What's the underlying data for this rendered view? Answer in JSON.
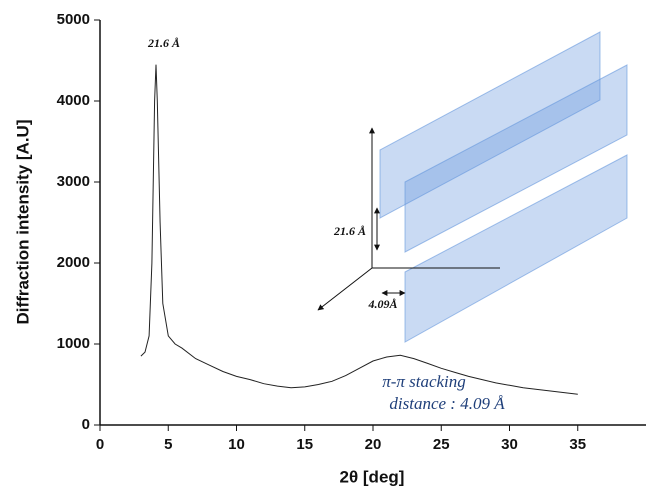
{
  "chart_data": {
    "type": "line",
    "x_label": "2θ [deg]",
    "y_label": "Diffraction intensity [A.U]",
    "x": [
      3.0,
      3.3,
      3.6,
      3.8,
      4.0,
      4.1,
      4.2,
      4.4,
      4.6,
      5.0,
      5.5,
      6,
      7,
      8,
      9,
      10,
      11,
      12,
      13,
      14,
      15,
      16,
      17,
      18,
      19,
      20,
      21,
      22,
      23,
      24,
      25,
      26,
      27,
      28,
      29,
      30,
      31,
      32,
      33,
      34,
      35
    ],
    "values": [
      850,
      900,
      1100,
      2000,
      4000,
      4450,
      4000,
      2500,
      1500,
      1100,
      1000,
      950,
      820,
      740,
      660,
      600,
      560,
      510,
      480,
      460,
      470,
      500,
      540,
      610,
      700,
      790,
      840,
      860,
      820,
      760,
      700,
      650,
      600,
      560,
      520,
      490,
      460,
      440,
      420,
      400,
      380
    ],
    "color": "#222222",
    "xlim": [
      0,
      40
    ],
    "xticks": [
      0,
      5,
      10,
      15,
      20,
      25,
      30,
      35
    ],
    "ylim": [
      0,
      5000
    ],
    "yticks": [
      0,
      1000,
      2000,
      3000,
      4000,
      5000
    ],
    "grid": false,
    "annotations": [
      "21.6 Å",
      "21.6 Å",
      "4.09Å",
      "π-π stacking",
      "distance : 4.09 Å"
    ]
  }
}
